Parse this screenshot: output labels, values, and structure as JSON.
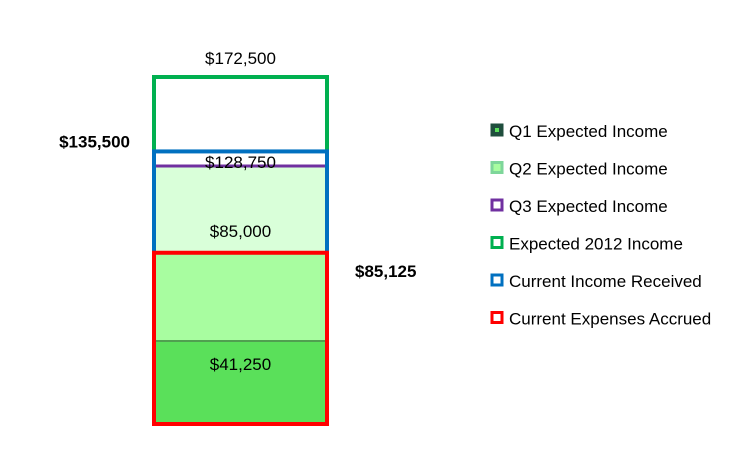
{
  "chart_data": {
    "type": "bar",
    "stacked": true,
    "ylim": [
      0,
      180000
    ],
    "grid": false,
    "legend_position": "right",
    "title": "",
    "xlabel": "",
    "ylabel": "",
    "series": [
      {
        "name": "Q1 Expected Income",
        "value": 41250,
        "label": "$41,250",
        "fill": "#5ae05a",
        "legend_color": "#1f4e3d"
      },
      {
        "name": "Q2 Expected Income",
        "value": 85000,
        "label": "$85,000",
        "fill": "#a8fda0",
        "legend_color": "#7ed69a"
      },
      {
        "name": "Q3 Expected Income",
        "value": 128750,
        "label": "$128,750",
        "fill": "#d9ffd9",
        "legend_color": "#7030a0"
      },
      {
        "name": "Expected 2012 Income",
        "value": 172500,
        "label": "$172,500",
        "fill": "#ffffff",
        "legend_color": "#00b050"
      },
      {
        "name": "Current Income Received",
        "value": 135500,
        "label": "$135,500",
        "legend_color": "#0070c0"
      },
      {
        "name": "Current Expenses Accrued",
        "value": 85125,
        "label": "$85,125",
        "legend_color": "#ff0000"
      }
    ]
  }
}
